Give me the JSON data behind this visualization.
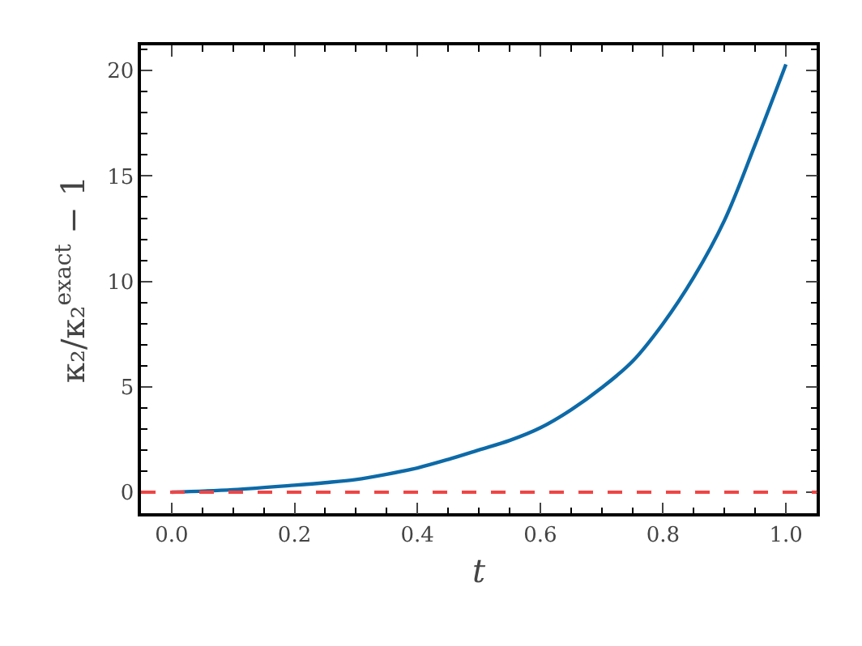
{
  "chart_data": {
    "type": "line",
    "xlabel": "t",
    "ylabel": "κ₂/κ₂$^{exact}$ − 1",
    "x": [
      0,
      0.1,
      0.2,
      0.25,
      0.3,
      0.35,
      0.4,
      0.45,
      0.5,
      0.55,
      0.6,
      0.65,
      0.7,
      0.75,
      0.8,
      0.85,
      0.9,
      0.95,
      1.0
    ],
    "series": [
      {
        "color": "#0d6aa8",
        "values": [
          0,
          0.12,
          0.33,
          0.45,
          0.6,
          0.85,
          1.15,
          1.55,
          2.0,
          2.45,
          3.05,
          3.9,
          4.95,
          6.2,
          8.0,
          10.2,
          12.9,
          16.5,
          20.3
        ]
      }
    ],
    "ref_lines": [
      {
        "axis": "y",
        "value": 0,
        "color": "#f04545",
        "line_style": "dashed"
      }
    ],
    "xlim": [
      -0.05,
      1.05
    ],
    "xticks": [
      {
        "value": 0,
        "label": "0.0"
      },
      0.2,
      0.4,
      0.6,
      0.8,
      {
        "value": 1,
        "label": "1.0"
      }
    ],
    "ylim": [
      -1,
      21.2
    ],
    "yticks": [
      0,
      5,
      10,
      15,
      20
    ],
    "grid": false,
    "marker": "none",
    "line_style": "solid"
  }
}
